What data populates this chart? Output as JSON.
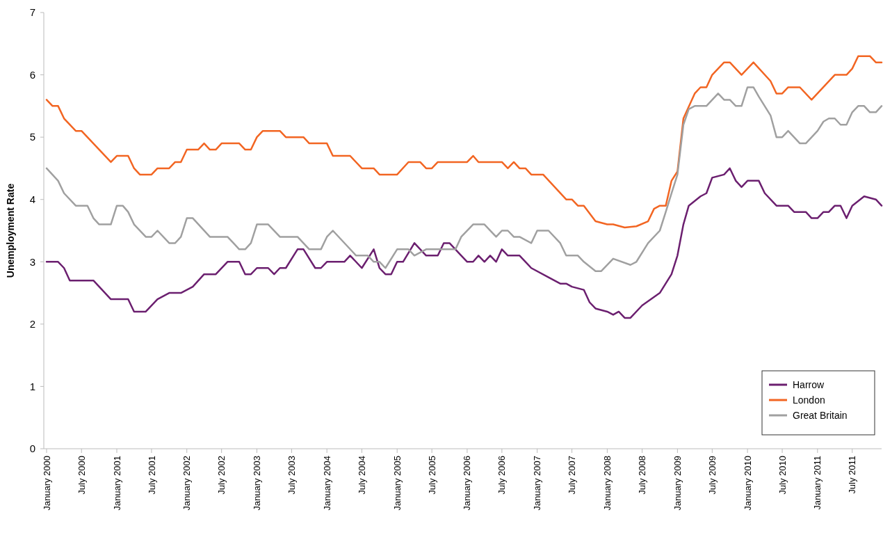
{
  "chart_data": {
    "type": "line",
    "ylabel": "Unemployment Rate",
    "ylim": [
      0,
      7
    ],
    "yticks": [
      0,
      1,
      2,
      3,
      4,
      5,
      6,
      7
    ],
    "xlim": [
      "2000-01",
      "2011-12"
    ],
    "xticks": [
      {
        "value": "2000-01",
        "label": "January 2000"
      },
      {
        "value": "2000-07",
        "label": "July 2000"
      },
      {
        "value": "2001-01",
        "label": "January 2001"
      },
      {
        "value": "2001-07",
        "label": "July 2001"
      },
      {
        "value": "2002-01",
        "label": "January 2002"
      },
      {
        "value": "2002-07",
        "label": "July 2002"
      },
      {
        "value": "2003-01",
        "label": "January 2003"
      },
      {
        "value": "2003-07",
        "label": "July 2003"
      },
      {
        "value": "2004-01",
        "label": "January 2004"
      },
      {
        "value": "2004-07",
        "label": "July 2004"
      },
      {
        "value": "2005-01",
        "label": "January 2005"
      },
      {
        "value": "2005-07",
        "label": "July 2005"
      },
      {
        "value": "2006-01",
        "label": "January 2006"
      },
      {
        "value": "2006-07",
        "label": "July 2006"
      },
      {
        "value": "2007-01",
        "label": "January 2007"
      },
      {
        "value": "2007-07",
        "label": "July 2007"
      },
      {
        "value": "2008-01",
        "label": "January 2008"
      },
      {
        "value": "2008-07",
        "label": "July 2008"
      },
      {
        "value": "2009-01",
        "label": "January 2009"
      },
      {
        "value": "2009-07",
        "label": "July 2009"
      },
      {
        "value": "2010-01",
        "label": "January 2010"
      },
      {
        "value": "2010-07",
        "label": "July 2010"
      },
      {
        "value": "2011-01",
        "label": "January 2011"
      },
      {
        "value": "2011-07",
        "label": "July 2011"
      }
    ],
    "legend": "bottom right",
    "grid": false,
    "marker": "none",
    "line_style": "solid",
    "series": [
      {
        "name": "Harrow",
        "color": "#6b1f6f",
        "x": [
          "2000-01",
          "2000-03",
          "2000-04",
          "2000-05",
          "2000-09",
          "2000-12",
          "2001-03",
          "2001-04",
          "2001-06",
          "2001-08",
          "2001-10",
          "2001-12",
          "2002-02",
          "2002-04",
          "2002-06",
          "2002-08",
          "2002-10",
          "2002-11",
          "2002-12",
          "2003-01",
          "2003-03",
          "2003-04",
          "2003-05",
          "2003-06",
          "2003-08",
          "2003-09",
          "2003-11",
          "2003-12",
          "2004-01",
          "2004-04",
          "2004-05",
          "2004-07",
          "2004-09",
          "2004-10",
          "2004-11",
          "2004-12",
          "2005-01",
          "2005-02",
          "2005-04",
          "2005-06",
          "2005-08",
          "2005-09",
          "2005-10",
          "2005-12",
          "2006-01",
          "2006-02",
          "2006-03",
          "2006-04",
          "2006-05",
          "2006-06",
          "2006-07",
          "2006-08",
          "2006-10",
          "2006-12",
          "2007-03",
          "2007-05",
          "2007-06",
          "2007-07",
          "2007-09",
          "2007-10",
          "2007-11",
          "2008-01",
          "2008-02",
          "2008-03",
          "2008-04",
          "2008-05",
          "2008-07",
          "2008-10",
          "2008-12",
          "2009-01",
          "2009-02",
          "2009-03",
          "2009-05",
          "2009-06",
          "2009-07",
          "2009-09",
          "2009-10",
          "2009-11",
          "2009-12",
          "2010-01",
          "2010-03",
          "2010-04",
          "2010-06",
          "2010-08",
          "2010-09",
          "2010-11",
          "2010-12",
          "2011-01",
          "2011-02",
          "2011-03",
          "2011-04",
          "2011-05",
          "2011-06",
          "2011-07",
          "2011-09",
          "2011-11",
          "2011-12"
        ],
        "values": [
          3.0,
          3.0,
          2.9,
          2.7,
          2.7,
          2.4,
          2.4,
          2.2,
          2.2,
          2.4,
          2.5,
          2.5,
          2.6,
          2.8,
          2.8,
          3.0,
          3.0,
          2.8,
          2.8,
          2.9,
          2.9,
          2.8,
          2.9,
          2.9,
          3.2,
          3.2,
          2.9,
          2.9,
          3.0,
          3.0,
          3.1,
          2.9,
          3.2,
          2.9,
          2.8,
          2.8,
          3.0,
          3.0,
          3.3,
          3.1,
          3.1,
          3.3,
          3.3,
          3.1,
          3.0,
          3.0,
          3.1,
          3.0,
          3.1,
          3.0,
          3.2,
          3.1,
          3.1,
          2.9,
          2.75,
          2.65,
          2.65,
          2.6,
          2.55,
          2.35,
          2.25,
          2.2,
          2.15,
          2.2,
          2.1,
          2.1,
          2.3,
          2.5,
          2.8,
          3.1,
          3.6,
          3.9,
          4.05,
          4.1,
          4.35,
          4.4,
          4.5,
          4.3,
          4.2,
          4.3,
          4.3,
          4.1,
          3.9,
          3.9,
          3.8,
          3.8,
          3.7,
          3.7,
          3.8,
          3.8,
          3.9,
          3.9,
          3.7,
          3.9,
          4.05,
          4.0,
          3.9
        ]
      },
      {
        "name": "London",
        "color": "#f26522",
        "x": [
          "2000-01",
          "2000-02",
          "2000-03",
          "2000-04",
          "2000-06",
          "2000-07",
          "2000-12",
          "2001-01",
          "2001-03",
          "2001-04",
          "2001-05",
          "2001-07",
          "2001-08",
          "2001-10",
          "2001-11",
          "2001-12",
          "2002-01",
          "2002-03",
          "2002-04",
          "2002-05",
          "2002-06",
          "2002-07",
          "2002-10",
          "2002-11",
          "2002-12",
          "2003-01",
          "2003-02",
          "2003-05",
          "2003-06",
          "2003-09",
          "2003-10",
          "2004-01",
          "2004-02",
          "2004-05",
          "2004-07",
          "2004-09",
          "2004-10",
          "2005-01",
          "2005-03",
          "2005-05",
          "2005-06",
          "2005-07",
          "2005-08",
          "2005-11",
          "2006-01",
          "2006-02",
          "2006-03",
          "2006-07",
          "2006-08",
          "2006-09",
          "2006-10",
          "2006-11",
          "2006-12",
          "2007-02",
          "2007-06",
          "2007-07",
          "2007-08",
          "2007-09",
          "2007-11",
          "2008-01",
          "2008-02",
          "2008-04",
          "2008-06",
          "2008-08",
          "2008-09",
          "2008-10",
          "2008-11",
          "2008-12",
          "2009-01",
          "2009-02",
          "2009-04",
          "2009-05",
          "2009-06",
          "2009-07",
          "2009-09",
          "2009-10",
          "2009-12",
          "2010-02",
          "2010-05",
          "2010-06",
          "2010-07",
          "2010-08",
          "2010-10",
          "2010-12",
          "2011-04",
          "2011-06",
          "2011-07",
          "2011-08",
          "2011-10",
          "2011-11",
          "2011-12"
        ],
        "values": [
          5.6,
          5.5,
          5.5,
          5.3,
          5.1,
          5.1,
          4.6,
          4.7,
          4.7,
          4.5,
          4.4,
          4.4,
          4.5,
          4.5,
          4.6,
          4.6,
          4.8,
          4.8,
          4.9,
          4.8,
          4.8,
          4.9,
          4.9,
          4.8,
          4.8,
          5.0,
          5.1,
          5.1,
          5.0,
          5.0,
          4.9,
          4.9,
          4.7,
          4.7,
          4.5,
          4.5,
          4.4,
          4.4,
          4.6,
          4.6,
          4.5,
          4.5,
          4.6,
          4.6,
          4.6,
          4.7,
          4.6,
          4.6,
          4.5,
          4.6,
          4.5,
          4.5,
          4.4,
          4.4,
          4.0,
          4.0,
          3.9,
          3.9,
          3.65,
          3.6,
          3.6,
          3.55,
          3.57,
          3.65,
          3.85,
          3.9,
          3.9,
          4.3,
          4.45,
          5.3,
          5.7,
          5.8,
          5.8,
          6.0,
          6.2,
          6.2,
          6.0,
          6.2,
          5.9,
          5.7,
          5.7,
          5.8,
          5.8,
          5.6,
          6.0,
          6.0,
          6.1,
          6.3,
          6.3,
          6.2,
          6.2
        ]
      },
      {
        "name": "Great Britain",
        "color": "#a0a0a0",
        "x": [
          "2000-01",
          "2000-03",
          "2000-04",
          "2000-06",
          "2000-08",
          "2000-09",
          "2000-10",
          "2000-12",
          "2001-01",
          "2001-02",
          "2001-03",
          "2001-04",
          "2001-06",
          "2001-07",
          "2001-08",
          "2001-10",
          "2001-11",
          "2001-12",
          "2002-01",
          "2002-02",
          "2002-05",
          "2002-08",
          "2002-09",
          "2002-10",
          "2002-11",
          "2002-12",
          "2003-01",
          "2003-03",
          "2003-05",
          "2003-08",
          "2003-10",
          "2003-12",
          "2004-01",
          "2004-02",
          "2004-06",
          "2004-08",
          "2004-09",
          "2004-10",
          "2004-11",
          "2005-01",
          "2005-03",
          "2005-04",
          "2005-06",
          "2005-11",
          "2005-12",
          "2006-02",
          "2006-04",
          "2006-06",
          "2006-07",
          "2006-08",
          "2006-09",
          "2006-10",
          "2006-12",
          "2007-01",
          "2007-03",
          "2007-05",
          "2007-06",
          "2007-08",
          "2007-09",
          "2007-11",
          "2007-12",
          "2008-02",
          "2008-05",
          "2008-06",
          "2008-08",
          "2008-10",
          "2008-11",
          "2008-12",
          "2009-01",
          "2009-02",
          "2009-03",
          "2009-04",
          "2009-06",
          "2009-08",
          "2009-09",
          "2009-10",
          "2009-11",
          "2009-12",
          "2010-01",
          "2010-02",
          "2010-03",
          "2010-05",
          "2010-06",
          "2010-07",
          "2010-08",
          "2010-10",
          "2010-11",
          "2011-01",
          "2011-02",
          "2011-03",
          "2011-04",
          "2011-05",
          "2011-06",
          "2011-07",
          "2011-08",
          "2011-09",
          "2011-10",
          "2011-11",
          "2011-12"
        ],
        "values": [
          4.5,
          4.3,
          4.1,
          3.9,
          3.9,
          3.7,
          3.6,
          3.6,
          3.9,
          3.9,
          3.8,
          3.6,
          3.4,
          3.4,
          3.5,
          3.3,
          3.3,
          3.4,
          3.7,
          3.7,
          3.4,
          3.4,
          3.3,
          3.2,
          3.2,
          3.3,
          3.6,
          3.6,
          3.4,
          3.4,
          3.2,
          3.2,
          3.4,
          3.5,
          3.1,
          3.1,
          3.0,
          3.0,
          2.9,
          3.2,
          3.2,
          3.1,
          3.2,
          3.2,
          3.4,
          3.6,
          3.6,
          3.4,
          3.5,
          3.5,
          3.4,
          3.4,
          3.3,
          3.5,
          3.5,
          3.3,
          3.1,
          3.1,
          3.0,
          2.85,
          2.85,
          3.05,
          2.95,
          3.0,
          3.3,
          3.5,
          3.8,
          4.1,
          4.4,
          5.2,
          5.45,
          5.5,
          5.5,
          5.7,
          5.6,
          5.6,
          5.5,
          5.5,
          5.8,
          5.8,
          5.65,
          5.35,
          5.0,
          5.0,
          5.1,
          4.9,
          4.9,
          5.1,
          5.25,
          5.3,
          5.3,
          5.2,
          5.2,
          5.4,
          5.5,
          5.5,
          5.4,
          5.4,
          5.5
        ]
      }
    ]
  }
}
